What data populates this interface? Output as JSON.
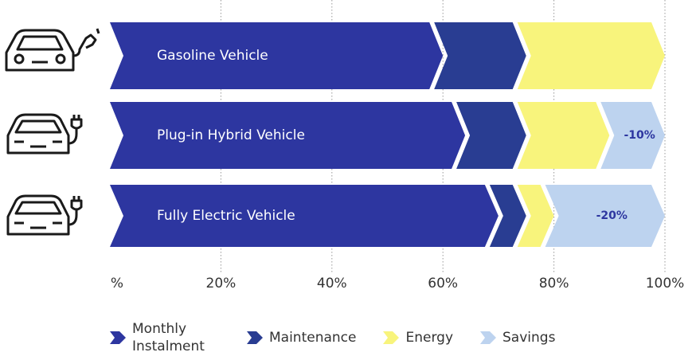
{
  "chart_data": {
    "type": "bar",
    "orientation": "horizontal",
    "stacked": true,
    "categories": [
      "Gasoline Vehicle",
      "Plug-in Hybrid Vehicle",
      "Fully Electric Vehicle"
    ],
    "series": [
      {
        "name": "Monthly Instalment",
        "color": "#2d36a0",
        "values": [
          60,
          64,
          70
        ]
      },
      {
        "name": "Maintenance",
        "color": "#293d92",
        "values": [
          15,
          11,
          5
        ]
      },
      {
        "name": "Energy",
        "color": "#f8f47c",
        "values": [
          25,
          15,
          5
        ]
      },
      {
        "name": "Savings",
        "color": "#bdd3ef",
        "values": [
          null,
          10,
          20
        ],
        "value_labels": [
          null,
          "-10%",
          "-20%"
        ]
      }
    ],
    "xlim": [
      0,
      100
    ],
    "xticks": [
      {
        "value": 0,
        "label": "%"
      },
      {
        "value": 20,
        "label": "20%"
      },
      {
        "value": 40,
        "label": "40%"
      },
      {
        "value": 60,
        "label": "60%"
      },
      {
        "value": 80,
        "label": "80%"
      },
      {
        "value": 100,
        "label": "100%"
      }
    ],
    "grid": true,
    "legend": "bottom"
  }
}
